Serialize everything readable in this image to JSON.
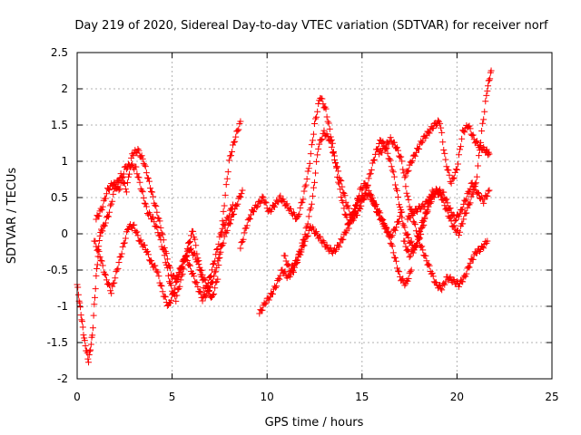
{
  "chart_data": {
    "type": "scatter",
    "title": "Day 219 of 2020, Sidereal Day-to-day VTEC variation (SDTVAR) for receiver norf",
    "xlabel": "GPS time / hours",
    "ylabel": "SDTVAR / TECUs",
    "xlim": [
      0,
      25
    ],
    "ylim": [
      -2,
      2.5
    ],
    "xticks": [
      "0",
      "5",
      "10",
      "15",
      "20",
      "25"
    ],
    "yticks": [
      "-2",
      "-1.5",
      "-1",
      "-0.5",
      "0",
      "0.5",
      "1",
      "1.5",
      "2",
      "2.5"
    ],
    "grid": true,
    "marker": "+",
    "color": "#ff0000",
    "series": [
      {
        "name": "trace-1",
        "x": [
          0.0,
          0.2,
          0.4,
          0.6,
          0.8,
          1.0,
          1.2,
          1.4,
          1.7,
          2.0,
          2.3,
          2.6,
          2.9,
          3.2,
          3.5,
          3.8,
          4.1,
          4.4,
          4.7,
          5.0,
          5.3,
          5.6,
          5.9,
          6.2,
          6.5,
          6.8,
          7.1,
          7.4,
          7.7,
          8.0,
          8.3,
          8.6
        ],
        "y": [
          -0.7,
          -1.1,
          -1.5,
          -1.75,
          -1.4,
          -0.6,
          0.0,
          0.1,
          0.3,
          0.65,
          0.8,
          0.6,
          1.1,
          1.15,
          1.0,
          0.7,
          0.4,
          0.1,
          -0.3,
          -0.6,
          -0.6,
          -0.4,
          -0.2,
          -0.3,
          -0.5,
          -0.7,
          -0.9,
          -0.6,
          0.3,
          1.0,
          1.3,
          1.55
        ]
      },
      {
        "name": "trace-2",
        "x": [
          0.9,
          1.2,
          1.5,
          1.8,
          2.1,
          2.4,
          2.7,
          3.0,
          3.3,
          3.6,
          3.9,
          4.2,
          4.5,
          4.8,
          5.1,
          5.4,
          5.7,
          6.0,
          6.3,
          6.6,
          6.9,
          7.2,
          7.5,
          7.8,
          8.1,
          8.4,
          8.7
        ],
        "y": [
          -0.1,
          -0.3,
          -0.6,
          -0.8,
          -0.5,
          -0.2,
          0.1,
          0.1,
          -0.1,
          -0.2,
          -0.4,
          -0.5,
          -0.8,
          -1.0,
          -0.8,
          -0.5,
          -0.3,
          -0.5,
          -0.7,
          -0.9,
          -0.8,
          -0.6,
          -0.3,
          0.0,
          0.2,
          0.4,
          0.6
        ]
      },
      {
        "name": "trace-3",
        "x": [
          1.0,
          1.3,
          1.6,
          1.9,
          2.2,
          2.5,
          2.8,
          3.1,
          3.4,
          3.7,
          4.0,
          4.3,
          4.6,
          4.9,
          5.2,
          5.5,
          5.8,
          6.1,
          6.4,
          6.7,
          7.0,
          7.3,
          7.6,
          7.9,
          8.2
        ],
        "y": [
          0.2,
          0.35,
          0.6,
          0.7,
          0.6,
          0.9,
          0.95,
          0.9,
          0.6,
          0.3,
          0.2,
          0.0,
          -0.3,
          -0.7,
          -0.9,
          -0.6,
          -0.2,
          0.05,
          -0.4,
          -0.8,
          -0.6,
          -0.3,
          0.05,
          0.2,
          0.4
        ]
      },
      {
        "name": "trace-4",
        "x": [
          8.6,
          8.9,
          9.2,
          9.5,
          9.8,
          10.1,
          10.4,
          10.7,
          11.0,
          11.3,
          11.6,
          11.9,
          12.2,
          12.5,
          12.8,
          13.1,
          13.4,
          13.7,
          14.0,
          14.3,
          14.6,
          14.9,
          15.2,
          15.5,
          15.8,
          16.1,
          16.4,
          16.7,
          17.0,
          17.3,
          17.6
        ],
        "y": [
          -0.2,
          0.1,
          0.3,
          0.4,
          0.5,
          0.3,
          0.4,
          0.5,
          0.4,
          0.3,
          0.2,
          0.5,
          0.9,
          1.5,
          1.9,
          1.7,
          1.3,
          0.8,
          0.4,
          0.1,
          0.3,
          0.6,
          0.7,
          0.5,
          0.3,
          0.15,
          0.0,
          -0.3,
          -0.6,
          -0.7,
          -0.5
        ]
      },
      {
        "name": "trace-5",
        "x": [
          9.6,
          9.9,
          10.2,
          10.5,
          10.8,
          11.1,
          11.4,
          11.7,
          12.0,
          12.3,
          12.6,
          12.9,
          13.2,
          13.5,
          13.8,
          14.1,
          14.4,
          14.7,
          15.0,
          15.3,
          15.6,
          15.9,
          16.2,
          16.5,
          16.8,
          17.1
        ],
        "y": [
          -1.1,
          -0.95,
          -0.85,
          -0.7,
          -0.5,
          -0.6,
          -0.5,
          -0.3,
          -0.1,
          0.1,
          0.0,
          -0.1,
          -0.2,
          -0.25,
          -0.15,
          0.0,
          0.2,
          0.4,
          0.5,
          0.55,
          0.45,
          0.3,
          0.1,
          -0.05,
          0.1,
          0.3
        ]
      },
      {
        "name": "trace-6",
        "x": [
          10.9,
          11.2,
          11.5,
          11.8,
          12.1,
          12.4,
          12.7,
          13.0,
          13.3,
          13.6,
          13.9,
          14.2,
          14.5,
          14.8,
          15.1,
          15.4,
          15.7,
          16.0,
          16.3,
          16.6,
          16.9,
          17.2,
          17.5,
          17.8,
          18.1,
          18.4,
          18.7
        ],
        "y": [
          -0.3,
          -0.5,
          -0.4,
          -0.2,
          0.1,
          0.5,
          1.2,
          1.4,
          1.3,
          1.0,
          0.7,
          0.4,
          0.2,
          0.3,
          0.5,
          0.8,
          1.1,
          1.3,
          1.15,
          0.9,
          0.5,
          0.1,
          -0.1,
          -0.2,
          0.0,
          0.3,
          0.6
        ]
      },
      {
        "name": "trace-7",
        "x": [
          15.9,
          16.2,
          16.5,
          16.8,
          17.1,
          17.4,
          17.7,
          18.0,
          18.3,
          18.6,
          18.9,
          19.2,
          19.5,
          19.8,
          20.1,
          20.4,
          20.7,
          21.0,
          21.3,
          21.6
        ],
        "y": [
          1.1,
          1.2,
          1.3,
          1.2,
          1.0,
          0.5,
          0.2,
          -0.1,
          -0.3,
          -0.5,
          -0.7,
          -0.75,
          -0.6,
          -0.65,
          -0.7,
          -0.6,
          -0.4,
          -0.25,
          -0.2,
          -0.1
        ]
      },
      {
        "name": "trace-8",
        "x": [
          17.3,
          17.6,
          17.9,
          18.2,
          18.5,
          18.8,
          19.1,
          19.4,
          19.7,
          20.0,
          20.3,
          20.6,
          20.9,
          21.2,
          21.5,
          21.7
        ],
        "y": [
          0.8,
          1.0,
          1.15,
          1.3,
          1.4,
          1.5,
          1.55,
          1.0,
          0.7,
          0.9,
          1.4,
          1.5,
          1.3,
          1.2,
          1.15,
          1.1
        ]
      },
      {
        "name": "trace-9",
        "x": [
          17.4,
          17.7,
          18.0,
          18.3,
          18.6,
          18.9,
          19.2,
          19.5,
          19.8,
          20.1,
          20.4,
          20.7,
          21.0,
          21.3,
          21.6,
          21.8
        ],
        "y": [
          0.2,
          0.3,
          0.35,
          0.4,
          0.5,
          0.6,
          0.5,
          0.3,
          0.1,
          0.0,
          0.25,
          0.45,
          0.7,
          1.4,
          2.0,
          2.25
        ]
      },
      {
        "name": "trace-10",
        "x": [
          17.2,
          17.5,
          17.8,
          18.1,
          18.4,
          18.7,
          19.0,
          19.3,
          19.6,
          19.9,
          20.2,
          20.5,
          20.8,
          21.1,
          21.4,
          21.7
        ],
        "y": [
          -0.1,
          -0.3,
          -0.2,
          0.1,
          0.3,
          0.5,
          0.6,
          0.55,
          0.35,
          0.2,
          0.3,
          0.5,
          0.7,
          0.55,
          0.45,
          0.6
        ]
      }
    ]
  }
}
